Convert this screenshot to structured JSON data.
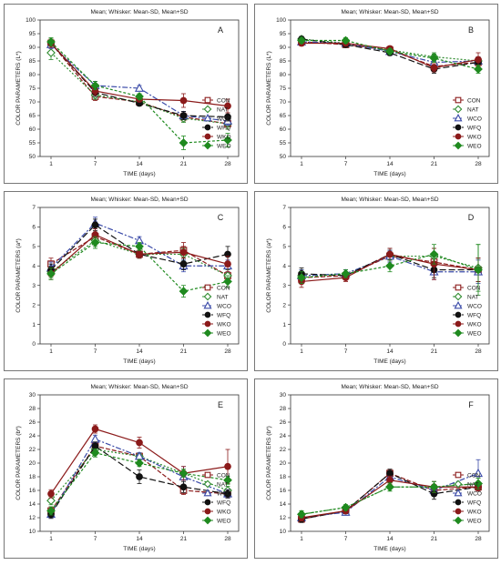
{
  "chart_data": [
    {
      "type": "line",
      "panel_label": "A",
      "title": "Mean;  Whisker: Mean-SD, Mean+SD",
      "xlabel": "TIME (days)",
      "ylabel": "COLOR PARAMETERS (L*)",
      "x": [
        1,
        7,
        14,
        21,
        28
      ],
      "x_ticks": [
        "1",
        "7",
        "14",
        "21",
        "28"
      ],
      "ylim": [
        50,
        100
      ],
      "y_ticks": [
        50,
        55,
        60,
        65,
        70,
        75,
        80,
        85,
        90,
        95,
        100
      ],
      "legend_position": "bottom-right",
      "series": [
        {
          "name": "CON",
          "values": [
            91.5,
            72.0,
            70.0,
            64.5,
            62.0
          ],
          "sd": [
            1.5,
            1.5,
            1.0,
            1.5,
            2.0
          ]
        },
        {
          "name": "NAT",
          "values": [
            88.0,
            72.5,
            70.0,
            64.0,
            62.0
          ],
          "sd": [
            2.5,
            1.5,
            1.0,
            1.5,
            2.0
          ]
        },
        {
          "name": "WCO",
          "values": [
            91.0,
            76.0,
            75.0,
            65.0,
            63.0
          ],
          "sd": [
            1.5,
            1.5,
            1.0,
            1.5,
            1.5
          ]
        },
        {
          "name": "WFQ",
          "values": [
            91.5,
            73.5,
            69.5,
            65.0,
            64.5
          ],
          "sd": [
            1.5,
            1.5,
            1.0,
            1.5,
            1.5
          ]
        },
        {
          "name": "WKO",
          "values": [
            91.5,
            74.0,
            71.0,
            70.5,
            68.5
          ],
          "sd": [
            1.5,
            1.5,
            1.0,
            2.5,
            2.5
          ]
        },
        {
          "name": "WEO",
          "values": [
            92.0,
            76.0,
            72.0,
            55.0,
            56.0
          ],
          "sd": [
            1.5,
            1.5,
            1.0,
            2.5,
            2.5
          ]
        }
      ]
    },
    {
      "type": "line",
      "panel_label": "B",
      "title": "Mean;  Whisker: Mean-SD, Mean+SD",
      "xlabel": "TIME (days)",
      "ylabel": "COLOR PARAMETERS (L*)",
      "x": [
        1,
        7,
        14,
        21,
        28
      ],
      "x_ticks": [
        "1",
        "7",
        "14",
        "21",
        "28"
      ],
      "ylim": [
        50,
        100
      ],
      "y_ticks": [
        50,
        55,
        60,
        65,
        70,
        75,
        80,
        85,
        90,
        95,
        100
      ],
      "legend_position": "bottom-right",
      "series": [
        {
          "name": "CON",
          "values": [
            92.0,
            91.0,
            89.0,
            83.0,
            84.5
          ],
          "sd": [
            1.0,
            1.0,
            1.0,
            1.5,
            1.5
          ]
        },
        {
          "name": "NAT",
          "values": [
            93.0,
            91.5,
            89.0,
            86.5,
            85.0
          ],
          "sd": [
            1.0,
            1.0,
            1.0,
            1.5,
            1.5
          ]
        },
        {
          "name": "WCO",
          "values": [
            92.0,
            91.5,
            88.5,
            84.5,
            85.0
          ],
          "sd": [
            1.0,
            1.0,
            1.0,
            1.5,
            1.5
          ]
        },
        {
          "name": "WFQ",
          "values": [
            93.0,
            91.0,
            88.0,
            82.0,
            84.5
          ],
          "sd": [
            1.0,
            1.0,
            1.0,
            1.5,
            1.5
          ]
        },
        {
          "name": "WKO",
          "values": [
            91.5,
            91.5,
            89.5,
            82.5,
            85.5
          ],
          "sd": [
            1.0,
            1.0,
            1.0,
            1.5,
            2.5
          ]
        },
        {
          "name": "WEO",
          "values": [
            92.5,
            92.5,
            88.5,
            86.0,
            82.0
          ],
          "sd": [
            1.0,
            1.0,
            1.0,
            1.5,
            1.5
          ]
        }
      ]
    },
    {
      "type": "line",
      "panel_label": "C",
      "title": "Mean;  Whisker: Mean-SD, Mean+SD",
      "xlabel": "TIME (days)",
      "ylabel": "COLOR PARAMETERS (a*)",
      "x": [
        1,
        7,
        14,
        21,
        28
      ],
      "x_ticks": [
        "1",
        "7",
        "14",
        "21",
        "28"
      ],
      "ylim": [
        0,
        7
      ],
      "y_ticks": [
        0,
        1,
        2,
        3,
        4,
        5,
        6,
        7
      ],
      "legend_position": "bottom-right",
      "series": [
        {
          "name": "CON",
          "values": [
            4.1,
            5.5,
            4.6,
            4.8,
            3.5
          ],
          "sd": [
            0.3,
            0.3,
            0.2,
            0.4,
            0.3
          ]
        },
        {
          "name": "NAT",
          "values": [
            3.7,
            5.3,
            4.6,
            4.6,
            3.5
          ],
          "sd": [
            0.3,
            0.3,
            0.2,
            0.3,
            0.3
          ]
        },
        {
          "name": "WCO",
          "values": [
            3.9,
            6.2,
            5.3,
            4.0,
            4.0
          ],
          "sd": [
            0.3,
            0.3,
            0.2,
            0.3,
            0.3
          ]
        },
        {
          "name": "WFQ",
          "values": [
            3.8,
            6.1,
            4.6,
            4.1,
            4.6
          ],
          "sd": [
            0.3,
            0.3,
            0.2,
            0.3,
            0.4
          ]
        },
        {
          "name": "WKO",
          "values": [
            3.6,
            5.6,
            4.6,
            4.7,
            4.1
          ],
          "sd": [
            0.3,
            0.3,
            0.2,
            0.3,
            0.4
          ]
        },
        {
          "name": "WEO",
          "values": [
            3.6,
            5.2,
            5.0,
            2.7,
            3.2
          ],
          "sd": [
            0.3,
            0.3,
            0.2,
            0.3,
            0.3
          ]
        }
      ]
    },
    {
      "type": "line",
      "panel_label": "D",
      "title": "Mean;  Whisker: Mean-SD, Mean+SD",
      "xlabel": "TIME (days)",
      "ylabel": "COLOR PARAMETERS (a*)",
      "x": [
        1,
        7,
        14,
        21,
        28
      ],
      "x_ticks": [
        "1",
        "7",
        "14",
        "21",
        "28"
      ],
      "ylim": [
        0,
        7
      ],
      "y_ticks": [
        0,
        1,
        2,
        3,
        4,
        5,
        6,
        7
      ],
      "legend_position": "bottom-right",
      "series": [
        {
          "name": "CON",
          "values": [
            3.4,
            3.5,
            4.5,
            4.2,
            3.8
          ],
          "sd": [
            0.3,
            0.2,
            0.3,
            0.4,
            0.6
          ]
        },
        {
          "name": "NAT",
          "values": [
            3.5,
            3.6,
            4.5,
            4.5,
            3.9
          ],
          "sd": [
            0.3,
            0.2,
            0.3,
            0.4,
            1.2
          ]
        },
        {
          "name": "WCO",
          "values": [
            3.5,
            3.6,
            4.5,
            3.7,
            3.7
          ],
          "sd": [
            0.3,
            0.2,
            0.3,
            0.4,
            0.6
          ]
        },
        {
          "name": "WFQ",
          "values": [
            3.6,
            3.5,
            4.6,
            3.8,
            3.8
          ],
          "sd": [
            0.3,
            0.2,
            0.3,
            0.4,
            0.6
          ]
        },
        {
          "name": "WKO",
          "values": [
            3.2,
            3.4,
            4.6,
            4.1,
            3.8
          ],
          "sd": [
            0.3,
            0.2,
            0.3,
            0.8,
            0.6
          ]
        },
        {
          "name": "WEO",
          "values": [
            3.4,
            3.6,
            4.0,
            4.6,
            3.8
          ],
          "sd": [
            0.3,
            0.2,
            0.3,
            0.5,
            1.3
          ]
        }
      ]
    },
    {
      "type": "line",
      "panel_label": "E",
      "title": "Mean;  Whisker: Mean-SD, Mean+SD",
      "xlabel": "TIME (days)",
      "ylabel": "COLOR PARAMETERS (b*)",
      "x": [
        1,
        7,
        14,
        21,
        28
      ],
      "x_ticks": [
        "1",
        "7",
        "14",
        "21",
        "28"
      ],
      "ylim": [
        10,
        30
      ],
      "y_ticks": [
        10,
        12,
        14,
        16,
        18,
        20,
        22,
        24,
        26,
        28,
        30
      ],
      "legend_position": "bottom-right",
      "series": [
        {
          "name": "CON",
          "values": [
            13.0,
            22.5,
            21.0,
            16.0,
            15.5
          ],
          "sd": [
            0.6,
            0.6,
            0.5,
            0.6,
            0.6
          ]
        },
        {
          "name": "NAT",
          "values": [
            14.5,
            22.0,
            21.0,
            18.5,
            16.0
          ],
          "sd": [
            0.6,
            0.6,
            0.5,
            0.6,
            0.6
          ]
        },
        {
          "name": "WCO",
          "values": [
            12.5,
            23.5,
            21.0,
            18.0,
            15.5
          ],
          "sd": [
            0.6,
            0.6,
            0.5,
            1.5,
            0.6
          ]
        },
        {
          "name": "WFQ",
          "values": [
            12.5,
            22.5,
            18.0,
            16.5,
            15.5
          ],
          "sd": [
            0.6,
            0.6,
            1.0,
            0.8,
            0.6
          ]
        },
        {
          "name": "WKO",
          "values": [
            15.5,
            25.0,
            23.0,
            18.5,
            19.5
          ],
          "sd": [
            0.6,
            0.6,
            0.8,
            1.0,
            2.5
          ]
        },
        {
          "name": "WEO",
          "values": [
            13.0,
            21.5,
            20.0,
            18.5,
            17.5
          ],
          "sd": [
            0.6,
            0.6,
            0.5,
            0.6,
            0.6
          ]
        }
      ]
    },
    {
      "type": "line",
      "panel_label": "F",
      "title": "Mean;  Whisker: Mean-SD, Mean+SD",
      "xlabel": "TIME (days)",
      "ylabel": "COLOR PARAMETERS (b*)",
      "x": [
        1,
        7,
        14,
        21,
        28
      ],
      "x_ticks": [
        "1",
        "7",
        "14",
        "21",
        "28"
      ],
      "ylim": [
        10,
        30
      ],
      "y_ticks": [
        10,
        12,
        14,
        16,
        18,
        20,
        22,
        24,
        26,
        28,
        30
      ],
      "legend_position": "bottom-right",
      "series": [
        {
          "name": "CON",
          "values": [
            11.8,
            13.0,
            18.5,
            16.0,
            16.5
          ],
          "sd": [
            0.5,
            0.4,
            0.6,
            0.8,
            0.6
          ]
        },
        {
          "name": "NAT",
          "values": [
            12.5,
            13.5,
            16.5,
            16.5,
            17.0
          ],
          "sd": [
            0.5,
            0.4,
            0.6,
            0.8,
            0.8
          ]
        },
        {
          "name": "WCO",
          "values": [
            12.0,
            12.8,
            18.0,
            16.0,
            18.5
          ],
          "sd": [
            0.5,
            0.4,
            0.6,
            0.8,
            2.0
          ]
        },
        {
          "name": "WFQ",
          "values": [
            11.8,
            13.0,
            18.5,
            15.5,
            16.5
          ],
          "sd": [
            0.5,
            0.4,
            0.6,
            0.8,
            0.6
          ]
        },
        {
          "name": "WKO",
          "values": [
            12.0,
            13.0,
            17.5,
            16.5,
            16.5
          ],
          "sd": [
            0.5,
            0.4,
            0.6,
            0.8,
            0.6
          ]
        },
        {
          "name": "WEO",
          "values": [
            12.5,
            13.5,
            16.5,
            16.5,
            17.0
          ],
          "sd": [
            0.5,
            0.4,
            0.6,
            0.8,
            0.8
          ]
        }
      ]
    }
  ],
  "series_styles": {
    "CON": {
      "color": "#8b1a1a",
      "marker": "square",
      "filled": false,
      "dash": "5,2"
    },
    "NAT": {
      "color": "#2e8b2e",
      "marker": "diamond",
      "filled": false,
      "dash": "2,2"
    },
    "WCO": {
      "color": "#3a4aa8",
      "marker": "triangle",
      "filled": false,
      "dash": "6,2,2,2"
    },
    "WFQ": {
      "color": "#111111",
      "marker": "circle",
      "filled": true,
      "dash": "7,3"
    },
    "WKO": {
      "color": "#8b1a1a",
      "marker": "circle",
      "filled": true,
      "dash": ""
    },
    "WEO": {
      "color": "#1f8a1f",
      "marker": "diamond",
      "filled": true,
      "dash": "3,2"
    }
  }
}
